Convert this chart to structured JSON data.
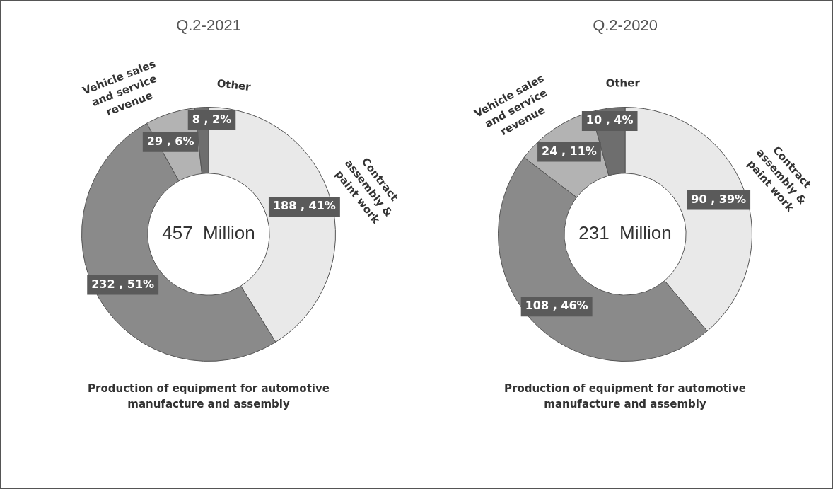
{
  "chart_data": [
    {
      "type": "donut",
      "title": "Q.2-2021",
      "categories": [
        "Contract assembly & paint work",
        "Production of equipment for automotive manufacture and assembly",
        "Vehicle sales and service revenue",
        "Other"
      ],
      "values": [
        188,
        232,
        29,
        8
      ],
      "colors": [
        "#e9e9e9",
        "#8a8a8a",
        "#b3b3b3",
        "#6e6e6e"
      ],
      "value_labels": [
        "188 , 41%",
        "232 , 51%",
        "29 , 6%",
        "8 , 2%"
      ],
      "annotations": [
        "457  Million"
      ]
    },
    {
      "type": "donut",
      "title": "Q.2-2020",
      "categories": [
        "Contract assembly & paint work",
        "Production of equipment for automotive manufacture and assembly",
        "Vehicle sales and service revenue",
        "Other"
      ],
      "values": [
        90,
        108,
        24,
        10
      ],
      "colors": [
        "#e9e9e9",
        "#8a8a8a",
        "#b3b3b3",
        "#6e6e6e"
      ],
      "value_labels": [
        "90 , 39%",
        "108 , 46%",
        "24 , 11%",
        "10 , 4%"
      ],
      "annotations": [
        "231  Million"
      ]
    }
  ]
}
